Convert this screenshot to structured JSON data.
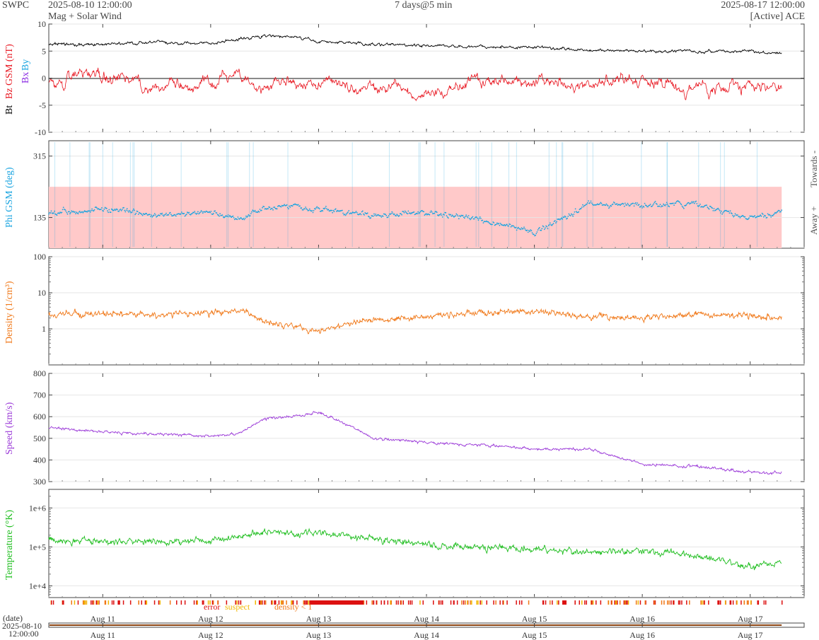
{
  "header": {
    "brand": "SWPC",
    "start": "2025-08-10 12:00:00",
    "subtitle": "Mag + Solar Wind",
    "span": "7 days@5 min",
    "end": "2025-08-17 12:00:00",
    "source": "[Active] ACE"
  },
  "colors": {
    "bt": "#000000",
    "bz": "#e8141e",
    "bx": "#8a2be2",
    "by": "#19a4e0",
    "phi": "#19a4e0",
    "phi_band": "#ffc9c9",
    "density": "#f07818",
    "speed": "#9b3ad8",
    "temperature": "#1fbe1f",
    "error": "#dd1111",
    "suspect": "#f2b800",
    "density_lt1": "#f07818"
  },
  "chart_data": [
    {
      "id": "mag",
      "type": "line",
      "ylabel_parts": [
        "Bt",
        "Bz GSM (nT)",
        "Bx",
        "By"
      ],
      "ylim": [
        -10,
        10
      ],
      "yticks": [
        -10,
        -5,
        0,
        5,
        10
      ],
      "x": [
        "Aug 10 12:00",
        "Aug 11",
        "Aug 11 12:00",
        "Aug 12",
        "Aug 12 06:00",
        "Aug 12 12:00",
        "Aug 12 18:00",
        "Aug 13",
        "Aug 13 12:00",
        "Aug 14",
        "Aug 14 12:00",
        "Aug 15",
        "Aug 15 12:00",
        "Aug 16",
        "Aug 16 12:00",
        "Aug 17",
        "Aug 17 06:00"
      ],
      "series": [
        {
          "name": "Bt",
          "values": [
            6.2,
            6.3,
            6.6,
            6.4,
            7.2,
            7.8,
            7.6,
            6.8,
            6.3,
            6.0,
            5.8,
            5.7,
            5.2,
            5.0,
            4.9,
            5.0,
            4.7
          ]
        },
        {
          "name": "Bz GSM",
          "values": [
            -1,
            0.5,
            -2,
            -1,
            1,
            -2,
            0,
            -1,
            -2,
            -3,
            0,
            -1,
            -1,
            -0.5,
            -2,
            -1,
            -1.5
          ]
        }
      ]
    },
    {
      "id": "phi",
      "type": "scatter",
      "ylabel": "Phi GSM (deg)",
      "right_labels": [
        "Towards -",
        "Away +"
      ],
      "ylim": [
        45,
        360
      ],
      "yticks": [
        135,
        315
      ],
      "band": [
        45,
        225
      ],
      "x": [
        "Aug 10 12:00",
        "Aug 11",
        "Aug 11 12:00",
        "Aug 12",
        "Aug 12 06:00",
        "Aug 12 12:00",
        "Aug 12 18:00",
        "Aug 13",
        "Aug 13 12:00",
        "Aug 14",
        "Aug 14 12:00",
        "Aug 15",
        "Aug 15 12:00",
        "Aug 16",
        "Aug 16 12:00",
        "Aug 17",
        "Aug 17 06:00"
      ],
      "values": [
        150,
        160,
        140,
        150,
        130,
        165,
        170,
        160,
        140,
        150,
        130,
        90,
        175,
        170,
        175,
        130,
        150
      ]
    },
    {
      "id": "density",
      "type": "line",
      "ylabel": "Density (1/cm³)",
      "scale": "log",
      "ylim": [
        0.1,
        100
      ],
      "yticks": [
        1,
        10,
        100
      ],
      "x": [
        "Aug 10 12:00",
        "Aug 11",
        "Aug 11 12:00",
        "Aug 12",
        "Aug 12 06:00",
        "Aug 12 12:00",
        "Aug 12 18:00",
        "Aug 13",
        "Aug 13 12:00",
        "Aug 14",
        "Aug 14 12:00",
        "Aug 15",
        "Aug 15 12:00",
        "Aug 16",
        "Aug 16 12:00",
        "Aug 17",
        "Aug 17 06:00"
      ],
      "values": [
        2.5,
        2.6,
        2.4,
        2.8,
        3.2,
        1.6,
        1.3,
        0.8,
        1.8,
        2.2,
        2.8,
        3.0,
        2.2,
        2.0,
        2.5,
        2.5,
        2.0
      ]
    },
    {
      "id": "speed",
      "type": "line",
      "ylabel": "Speed (km/s)",
      "ylim": [
        300,
        800
      ],
      "yticks": [
        300,
        400,
        500,
        600,
        700,
        800
      ],
      "x": [
        "Aug 10 12:00",
        "Aug 11",
        "Aug 11 12:00",
        "Aug 12",
        "Aug 12 06:00",
        "Aug 12 12:00",
        "Aug 12 18:00",
        "Aug 13",
        "Aug 13 06:00",
        "Aug 13 12:00",
        "Aug 14",
        "Aug 14 12:00",
        "Aug 15",
        "Aug 15 12:00",
        "Aug 16",
        "Aug 16 12:00",
        "Aug 17",
        "Aug 17 06:00"
      ],
      "values": [
        550,
        530,
        520,
        510,
        520,
        590,
        600,
        620,
        570,
        500,
        480,
        470,
        450,
        450,
        380,
        370,
        345,
        340
      ]
    },
    {
      "id": "temperature",
      "type": "line",
      "ylabel": "Temperature (°K)",
      "scale": "log",
      "ylim": [
        5000,
        3000000
      ],
      "yticks": [
        "1e+4",
        "1e+5",
        "1e+6"
      ],
      "ytick_values": [
        10000,
        100000,
        1000000
      ],
      "x": [
        "Aug 10 12:00",
        "Aug 11",
        "Aug 11 12:00",
        "Aug 12",
        "Aug 12 06:00",
        "Aug 12 12:00",
        "Aug 12 18:00",
        "Aug 13",
        "Aug 13 12:00",
        "Aug 14",
        "Aug 14 12:00",
        "Aug 15",
        "Aug 15 12:00",
        "Aug 16",
        "Aug 16 12:00",
        "Aug 17",
        "Aug 17 06:00"
      ],
      "values": [
        150000,
        140000,
        130000,
        150000,
        180000,
        250000,
        220000,
        230000,
        160000,
        110000,
        100000,
        90000,
        70000,
        80000,
        60000,
        30000,
        40000
      ]
    }
  ],
  "flags": {
    "error": "error",
    "suspect": "suspect",
    "density_lt1": "density < 1"
  },
  "xaxis": {
    "ticks": [
      "Aug 11",
      "Aug 12",
      "Aug 13",
      "Aug 14",
      "Aug 15",
      "Aug 16",
      "Aug 17"
    ],
    "range_label": "(date)",
    "range_start_date": "2025-08-10",
    "range_start_time": "12:00:00"
  }
}
